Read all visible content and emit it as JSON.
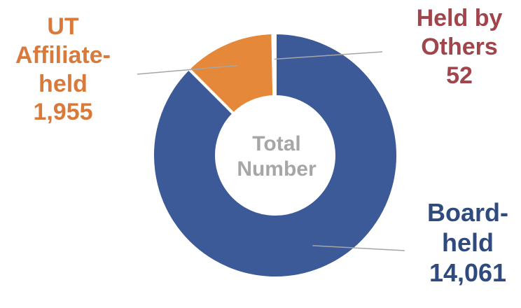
{
  "chart_data": {
    "type": "pie",
    "donut": true,
    "center_label": [
      "Total",
      "Number"
    ],
    "slices": [
      {
        "label_lines": [
          "Board-",
          "held"
        ],
        "value": 14061,
        "value_label": "14,061",
        "color": "#3d5a98",
        "label_color": "#2e4a7e"
      },
      {
        "label_lines": [
          "UT",
          "Affiliate-",
          "held"
        ],
        "value": 1955,
        "value_label": "1,955",
        "color": "#e6883a",
        "label_color": "#d97a3a"
      },
      {
        "label_lines": [
          "Held by",
          "Others"
        ],
        "value": 52,
        "value_label": "52",
        "color": "#953d42",
        "label_color": "#a0454b"
      }
    ],
    "center_color": "#a6a6a6",
    "leader_color": "#a6a6a6",
    "legend": "none",
    "grid": false
  }
}
